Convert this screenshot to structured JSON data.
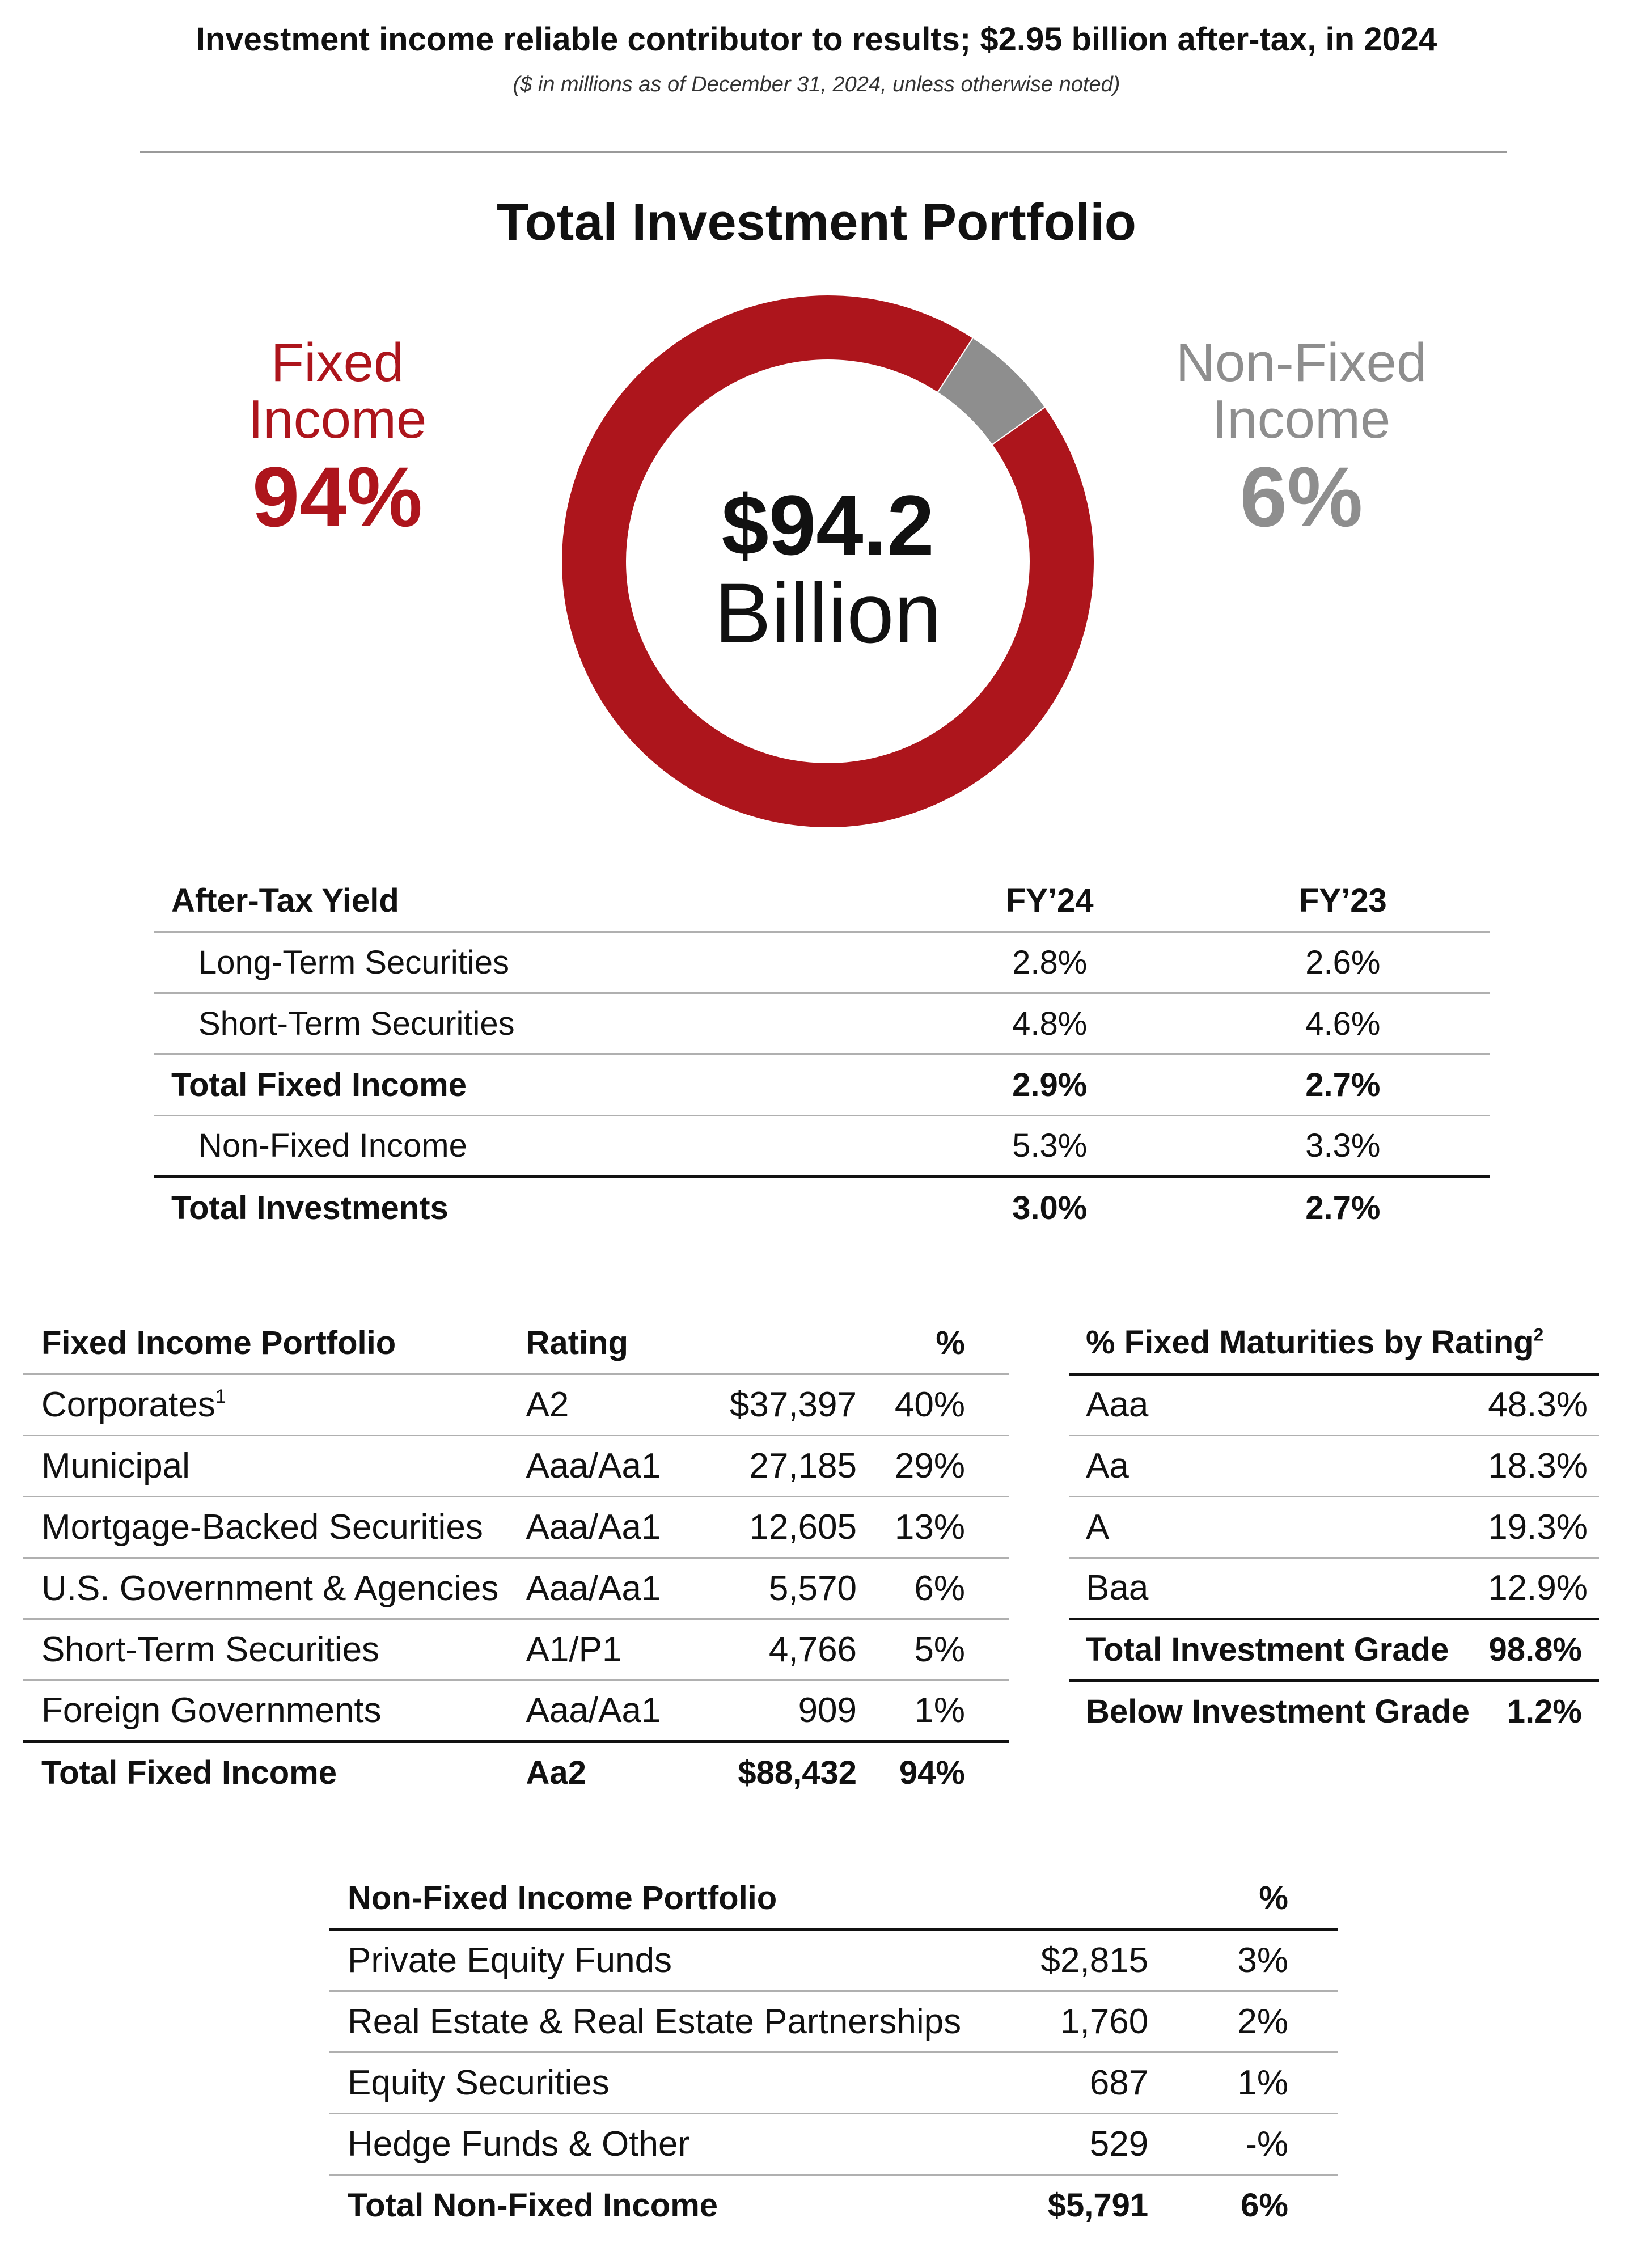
{
  "header": {
    "headline": "Investment income reliable contributor to results; $2.95 billion after-tax, in 2024",
    "subhead": "($ in millions as of December 31, 2024, unless otherwise noted)"
  },
  "portfolio": {
    "title": "Total Investment Portfolio",
    "center_value": "$94.2",
    "center_unit": "Billion",
    "fixed_label_1": "Fixed",
    "fixed_label_2": "Income",
    "fixed_pct": "94%",
    "nonfixed_label_1": "Non-Fixed",
    "nonfixed_label_2": "Income",
    "nonfixed_pct": "6%"
  },
  "colors": {
    "fixed": "#ad151c",
    "nonfixed": "#8e8e8e"
  },
  "chart_data": {
    "type": "pie",
    "donut": true,
    "title": "Total Investment Portfolio",
    "center_text": "$94.2 Billion",
    "categories": [
      "Fixed Income",
      "Non-Fixed Income"
    ],
    "values": [
      94,
      6
    ],
    "colors": [
      "#ad151c",
      "#8e8e8e"
    ]
  },
  "yield_table": {
    "headers": [
      "After-Tax Yield",
      "FY’24",
      "FY’23"
    ],
    "rows": [
      {
        "label": "Long-Term Securities",
        "fy24": "2.8%",
        "fy23": "2.6%"
      },
      {
        "label": "Short-Term Securities",
        "fy24": "4.8%",
        "fy23": "4.6%"
      },
      {
        "label": "Total Fixed Income",
        "fy24": "2.9%",
        "fy23": "2.7%"
      },
      {
        "label": "Non-Fixed Income",
        "fy24": "5.3%",
        "fy23": "3.3%"
      },
      {
        "label": "Total Investments",
        "fy24": "3.0%",
        "fy23": "2.7%"
      }
    ]
  },
  "fixed_income_table": {
    "headers": [
      "Fixed Income Portfolio",
      "Rating",
      "%"
    ],
    "rows": [
      {
        "name": "Corporates",
        "sup": "1",
        "rating": "A2",
        "value": "$37,397",
        "pct": "40%"
      },
      {
        "name": "Municipal",
        "rating": "Aaa/Aa1",
        "value": "27,185",
        "pct": "29%"
      },
      {
        "name": "Mortgage-Backed Securities",
        "rating": "Aaa/Aa1",
        "value": "12,605",
        "pct": "13%"
      },
      {
        "name": "U.S. Government & Agencies",
        "rating": "Aaa/Aa1",
        "value": "5,570",
        "pct": "6%"
      },
      {
        "name": "Short-Term Securities",
        "rating": "A1/P1",
        "value": "4,766",
        "pct": "5%"
      },
      {
        "name": "Foreign Governments",
        "rating": "Aaa/Aa1",
        "value": "909",
        "pct": "1%"
      },
      {
        "name": "Total Fixed Income",
        "rating": "Aa2",
        "value": "$88,432",
        "pct": "94%"
      }
    ]
  },
  "rating_table": {
    "header": "% Fixed Maturities by Rating",
    "header_sup": "2",
    "rows": [
      {
        "name": "Aaa",
        "pct": "48.3%"
      },
      {
        "name": "Aa",
        "pct": "18.3%"
      },
      {
        "name": "A",
        "pct": "19.3%"
      },
      {
        "name": "Baa",
        "pct": "12.9%"
      },
      {
        "name": "Total Investment Grade",
        "pct": "98.8%"
      },
      {
        "name": "Below Investment Grade",
        "pct": "1.2%"
      }
    ]
  },
  "nonfixed_table": {
    "headers": [
      "Non-Fixed Income Portfolio",
      "%"
    ],
    "rows": [
      {
        "name": "Private Equity Funds",
        "value": "$2,815",
        "pct": "3%"
      },
      {
        "name": "Real Estate & Real Estate Partnerships",
        "value": "1,760",
        "pct": "2%"
      },
      {
        "name": "Equity Securities",
        "value": "687",
        "pct": "1%"
      },
      {
        "name": "Hedge Funds & Other",
        "value": "529",
        "pct": "-%"
      },
      {
        "name": "Total Non-Fixed Income",
        "value": "$5,791",
        "pct": "6%"
      }
    ]
  }
}
